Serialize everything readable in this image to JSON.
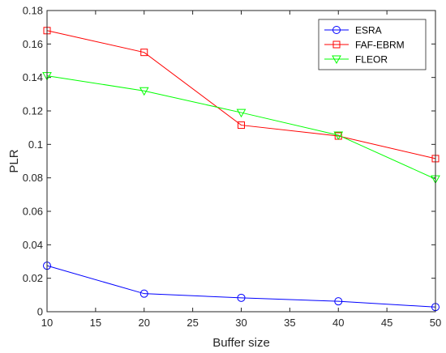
{
  "chart_data": {
    "type": "line",
    "x": [
      10,
      20,
      30,
      40,
      50
    ],
    "series": [
      {
        "name": "ESRA",
        "values": [
          0.0275,
          0.0108,
          0.0083,
          0.0062,
          0.0028
        ],
        "color": "#0000ff",
        "marker": "circle"
      },
      {
        "name": "FAF-EBRM",
        "values": [
          0.168,
          0.155,
          0.1115,
          0.105,
          0.0915
        ],
        "color": "#ff0000",
        "marker": "square"
      },
      {
        "name": "FLEOR",
        "values": [
          0.141,
          0.132,
          0.119,
          0.1055,
          0.0793
        ],
        "color": "#00ff00",
        "marker": "triangle-down"
      }
    ],
    "xlabel": "Buffer size",
    "ylabel": "PLR",
    "xlim": [
      10,
      50
    ],
    "ylim": [
      0,
      0.18
    ],
    "xticks": [
      "10",
      "15",
      "20",
      "25",
      "30",
      "35",
      "40",
      "45",
      "50"
    ],
    "yticks": [
      "0",
      "0.02",
      "0.04",
      "0.06",
      "0.08",
      "0.1",
      "0.12",
      "0.14",
      "0.16",
      "0.18"
    ],
    "grid": false,
    "legend_position": "top-right"
  }
}
